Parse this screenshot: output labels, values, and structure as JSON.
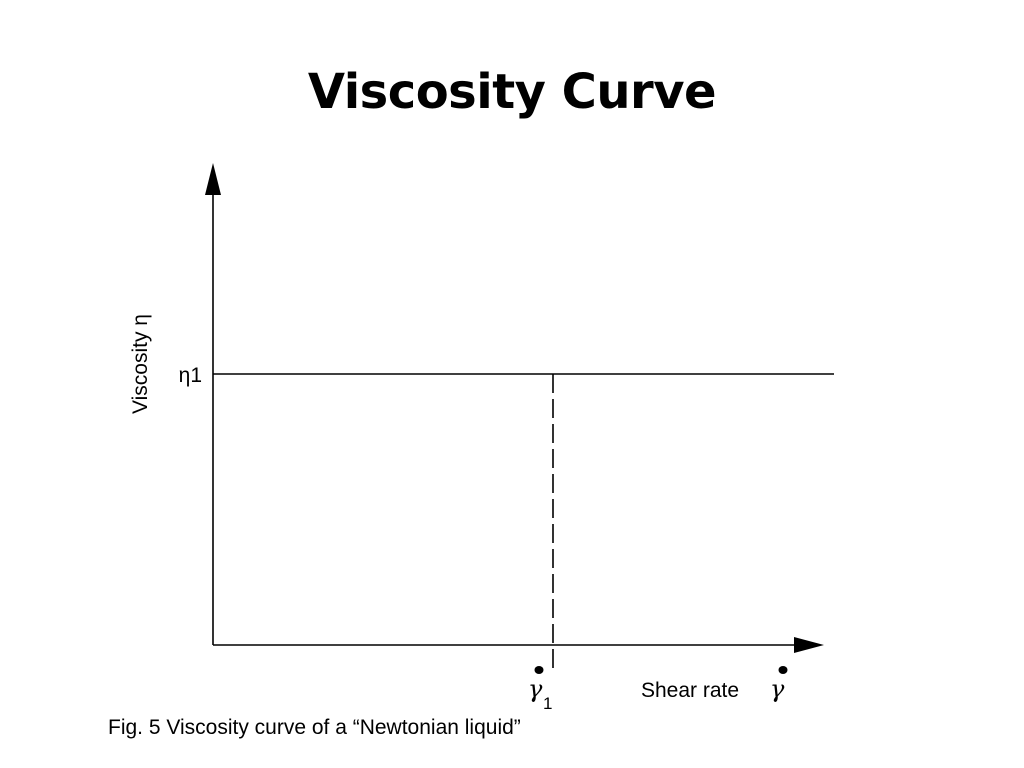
{
  "slide": {
    "title": "Viscosity Curve",
    "caption": "Fig. 5 Viscosity curve of a “Newtonian liquid”"
  },
  "diagram": {
    "y_axis_label": "Viscosity η",
    "y_marker_label": "η1",
    "x_axis_label": "Shear rate",
    "x_axis_symbol": "γ",
    "x_marker_symbol": "γ",
    "x_marker_subscript": "1",
    "line_color": "#000000"
  }
}
